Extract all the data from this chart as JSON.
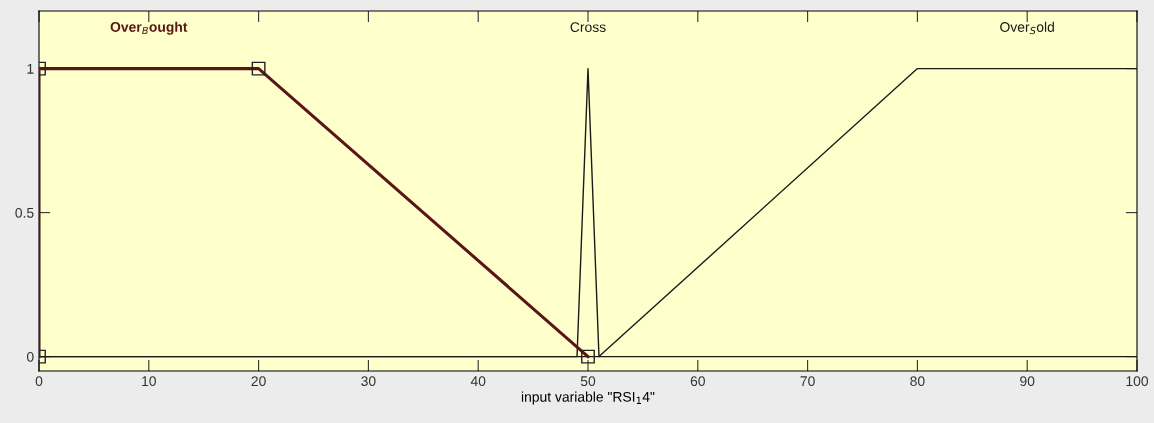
{
  "chart_data": {
    "type": "line",
    "xlabel": "input variable \"RSI$_{1}$4\"",
    "xlim": [
      0,
      100
    ],
    "xticks": [
      0,
      10,
      20,
      30,
      40,
      50,
      60,
      70,
      80,
      90,
      100
    ],
    "ylim": [
      -0.05,
      1.2
    ],
    "yticks": [
      0,
      0.5,
      1
    ],
    "grid": false,
    "legend": false,
    "series": [
      {
        "name": "Over$_{B}$ought",
        "color": "#5a1616",
        "x": [
          0,
          0,
          20,
          50
        ],
        "values": [
          0,
          1,
          1,
          0
        ],
        "marker": "square"
      },
      {
        "name": "Cross",
        "color": "#1a1a1a",
        "x": [
          0,
          49,
          50,
          51,
          100
        ],
        "values": [
          0,
          0,
          1,
          0,
          0
        ]
      },
      {
        "name": "Over$_{S}$old",
        "color": "#1a1a1a",
        "x": [
          0,
          51,
          80,
          100
        ],
        "values": [
          0,
          0,
          1,
          1
        ]
      }
    ]
  }
}
